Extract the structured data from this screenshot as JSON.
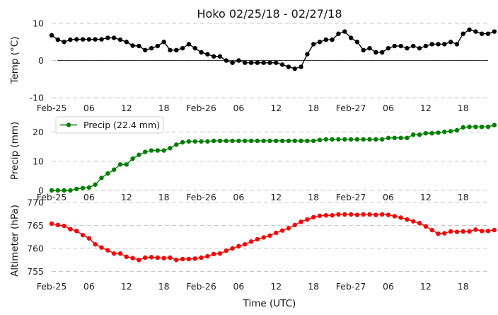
{
  "chart_data": {
    "type": "line",
    "title": "Hoko 02/25/18 - 02/27/18",
    "xlabel": "Time (UTC)",
    "x_range_hours": [
      0,
      70
    ],
    "x_ticks": [
      {
        "hour": 0,
        "label": "Feb-25"
      },
      {
        "hour": 6,
        "label": "06"
      },
      {
        "hour": 12,
        "label": "12"
      },
      {
        "hour": 18,
        "label": "18"
      },
      {
        "hour": 24,
        "label": "Feb-26"
      },
      {
        "hour": 30,
        "label": "06"
      },
      {
        "hour": 36,
        "label": "12"
      },
      {
        "hour": 42,
        "label": "18"
      },
      {
        "hour": 48,
        "label": "Feb-27"
      },
      {
        "hour": 54,
        "label": "06"
      },
      {
        "hour": 60,
        "label": "12"
      },
      {
        "hour": 66,
        "label": "18"
      }
    ],
    "panels": [
      {
        "name": "temp",
        "ylabel": "Temp (°C)",
        "ylim": [
          -10,
          10
        ],
        "yticks": [
          -10,
          0,
          10
        ],
        "color": "#000000",
        "zero_line": true,
        "legend": null,
        "series": [
          {
            "name": "",
            "x_start_hour": 0,
            "x_step_hour": 1,
            "values": [
              6.8,
              5.6,
              5.0,
              5.6,
              5.7,
              5.7,
              5.7,
              5.7,
              5.7,
              6.1,
              6.1,
              5.6,
              5.0,
              4.0,
              3.9,
              2.8,
              3.3,
              3.9,
              5.0,
              2.8,
              2.8,
              3.3,
              4.4,
              3.3,
              2.2,
              1.7,
              1.1,
              1.1,
              0.0,
              -0.6,
              0.0,
              -0.6,
              -0.6,
              -0.6,
              -0.6,
              -0.6,
              -0.6,
              -1.1,
              -1.7,
              -2.2,
              -1.7,
              1.7,
              4.4,
              5.0,
              5.6,
              5.6,
              7.2,
              7.8,
              6.1,
              5.0,
              2.8,
              3.3,
              2.2,
              2.2,
              3.3,
              3.9,
              3.9,
              3.3,
              3.9,
              3.3,
              3.9,
              4.4,
              4.4,
              4.4,
              5.0,
              4.4,
              7.2,
              8.3,
              7.8,
              7.2,
              7.2,
              7.8
            ]
          }
        ]
      },
      {
        "name": "precip",
        "ylabel": "Precip (mm)",
        "ylim": [
          0,
          25
        ],
        "yticks": [
          0,
          10,
          20
        ],
        "color": "#008000",
        "zero_line": false,
        "legend": {
          "label": "Precip (22.4 mm)",
          "placement": "upper-left"
        },
        "series": [
          {
            "name": "Precip (22.4 mm)",
            "x_start_hour": 0,
            "x_step_hour": 1,
            "values": [
              0.0,
              0.0,
              0.0,
              0.0,
              0.5,
              0.8,
              1.0,
              2.0,
              4.3,
              5.8,
              7.1,
              8.9,
              8.9,
              10.9,
              12.2,
              13.2,
              13.7,
              13.7,
              13.7,
              14.5,
              15.7,
              16.5,
              16.8,
              16.8,
              16.8,
              16.8,
              17.0,
              17.0,
              17.0,
              17.0,
              17.0,
              17.0,
              17.0,
              17.0,
              17.0,
              17.0,
              17.0,
              17.0,
              17.0,
              17.0,
              17.0,
              17.0,
              17.0,
              17.3,
              17.5,
              17.5,
              17.5,
              17.5,
              17.5,
              17.5,
              17.5,
              17.5,
              17.5,
              17.5,
              18.0,
              18.0,
              18.0,
              18.0,
              19.1,
              19.1,
              19.6,
              19.6,
              19.8,
              20.1,
              20.3,
              20.6,
              21.6,
              21.8,
              21.8,
              21.8,
              21.8,
              22.4
            ]
          }
        ]
      },
      {
        "name": "altimeter",
        "ylabel": "Altimeter (hPa)",
        "ylim": [
          754,
          770
        ],
        "yticks": [
          755,
          760,
          765,
          770
        ],
        "color": "#ff0000",
        "zero_line": false,
        "legend": null,
        "series": [
          {
            "name": "",
            "x_start_hour": 0,
            "x_step_hour": 1,
            "values": [
              765.4,
              765.1,
              764.9,
              764.2,
              763.8,
              762.9,
              762.2,
              760.9,
              760.2,
              759.6,
              758.9,
              758.9,
              758.2,
              757.9,
              757.5,
              758.0,
              758.1,
              758.0,
              757.9,
              758.0,
              757.5,
              757.7,
              757.7,
              757.8,
              758.0,
              758.3,
              758.8,
              758.9,
              759.5,
              760.0,
              760.5,
              760.9,
              761.5,
              762.0,
              762.4,
              762.8,
              763.4,
              763.9,
              764.4,
              765.1,
              765.8,
              766.3,
              766.8,
              767.1,
              767.2,
              767.2,
              767.4,
              767.4,
              767.4,
              767.3,
              767.4,
              767.4,
              767.3,
              767.4,
              767.3,
              767.0,
              766.7,
              766.3,
              765.9,
              765.5,
              764.8,
              764.0,
              763.2,
              763.3,
              763.7,
              763.6,
              763.7,
              763.7,
              764.1,
              763.8,
              763.8,
              764.0
            ]
          }
        ]
      }
    ]
  }
}
